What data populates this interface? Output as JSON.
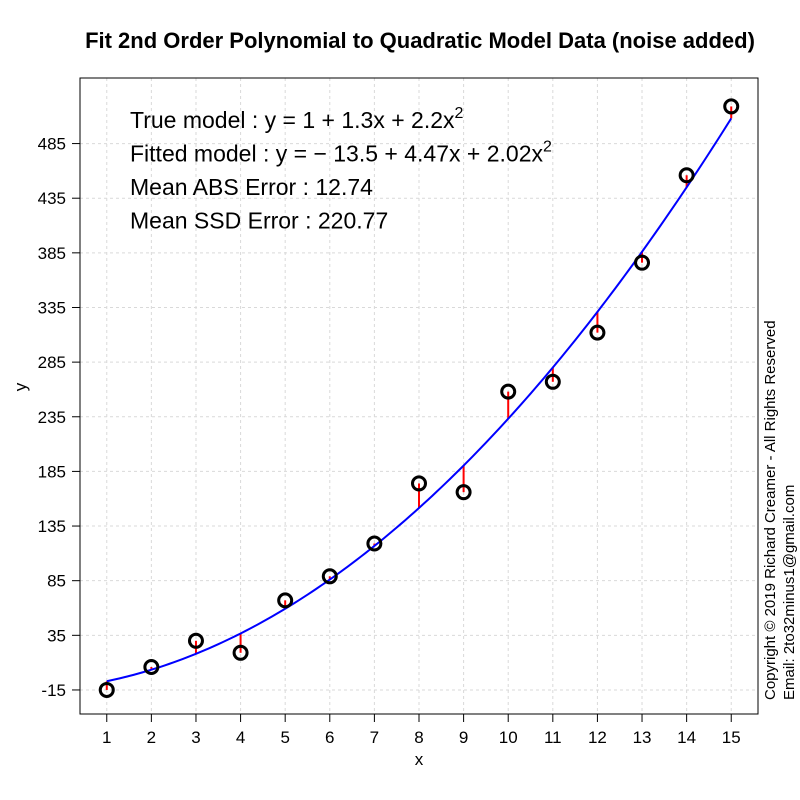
{
  "chart_data": {
    "type": "scatter",
    "title": "Fit 2nd Order Polynomial to Quadratic Model Data  (noise added)",
    "xlabel": "x",
    "ylabel": "y",
    "x_ticks": [
      1,
      2,
      3,
      4,
      5,
      6,
      7,
      8,
      9,
      10,
      11,
      12,
      13,
      14,
      15
    ],
    "y_ticks": [
      -15,
      35,
      85,
      135,
      185,
      235,
      285,
      335,
      385,
      435,
      485
    ],
    "xlim": [
      0.4,
      15.6
    ],
    "ylim": [
      -37,
      545
    ],
    "grid": true,
    "points": {
      "name": "Data (noise added)",
      "color": "#000000",
      "x": [
        1,
        2,
        3,
        4,
        5,
        6,
        7,
        8,
        9,
        10,
        11,
        12,
        13,
        14,
        15
      ],
      "y": [
        -15,
        6,
        30,
        19,
        67,
        89,
        119,
        174,
        166,
        258,
        267,
        312,
        376,
        456,
        519
      ]
    },
    "fitted_curve": {
      "color": "#0000ff",
      "coefficients": {
        "intercept": -13.5,
        "linear": 4.47,
        "quadratic": 2.02
      }
    },
    "residual_color": "#ff0000",
    "annotations": [
      {
        "prefix": "True model",
        "formula": [
          {
            "t": " : y = 1 + 1.3x + 2.2x"
          },
          {
            "t": "2",
            "sup": true
          }
        ]
      },
      {
        "prefix": "Fitted model",
        "formula": [
          {
            "t": " : y = − 13.5 + 4.47x + 2.02x"
          },
          {
            "t": "2",
            "sup": true
          }
        ]
      },
      {
        "prefix": "Mean ABS Error",
        "formula": [
          {
            "t": " : 12.74"
          }
        ]
      },
      {
        "prefix": "Mean SSD Error",
        "formula": [
          {
            "t": " : 220.77"
          }
        ]
      }
    ]
  },
  "copyright": {
    "line1": "Copyright © 2019 Richard Creamer - All Rights Reserved",
    "line2": "Email: 2to32minus1@gmail.com"
  }
}
